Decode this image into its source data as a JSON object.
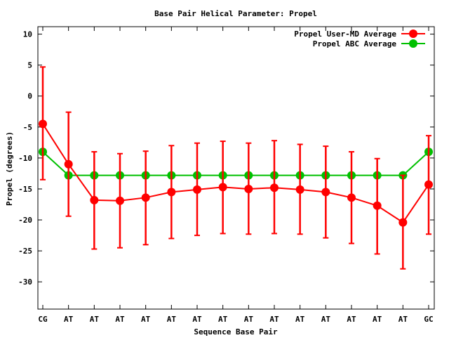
{
  "chart_data": {
    "type": "line",
    "title": "Base Pair Helical Parameter: Propel",
    "xlabel": "Sequence Base Pair",
    "ylabel": "Propel (degrees)",
    "categories": [
      "CG",
      "AT",
      "AT",
      "AT",
      "AT",
      "AT",
      "AT",
      "AT",
      "AT",
      "AT",
      "AT",
      "AT",
      "AT",
      "AT",
      "AT",
      "GC"
    ],
    "ylim": [
      -34.4,
      11.2
    ],
    "yticks": [
      10,
      5,
      0,
      -5,
      -10,
      -15,
      -20,
      -25,
      -30
    ],
    "grid": false,
    "legend_position": "top-right",
    "series": [
      {
        "name": "Propel User-MD Average",
        "color": "#ff0000",
        "values": [
          -4.5,
          -11.0,
          -16.8,
          -16.9,
          -16.4,
          -15.5,
          -15.1,
          -14.7,
          -15.0,
          -14.8,
          -15.1,
          -15.5,
          -16.4,
          -17.7,
          -20.4,
          -14.3
        ],
        "error_upper": [
          4.7,
          -2.6,
          -9.0,
          -9.3,
          -8.9,
          -8.0,
          -7.6,
          -7.3,
          -7.6,
          -7.2,
          -7.8,
          -8.1,
          -9.0,
          -10.1,
          -12.8,
          -6.4
        ],
        "error_lower": [
          -13.5,
          -19.4,
          -24.7,
          -24.5,
          -24.0,
          -23.0,
          -22.5,
          -22.2,
          -22.3,
          -22.2,
          -22.3,
          -22.9,
          -23.8,
          -25.5,
          -27.9,
          -22.3
        ]
      },
      {
        "name": "Propel ABC Average",
        "color": "#00c000",
        "values": [
          -9.0,
          -12.8,
          -12.8,
          -12.8,
          -12.8,
          -12.8,
          -12.8,
          -12.8,
          -12.8,
          -12.8,
          -12.8,
          -12.8,
          -12.8,
          -12.8,
          -12.8,
          -9.0
        ]
      }
    ]
  }
}
